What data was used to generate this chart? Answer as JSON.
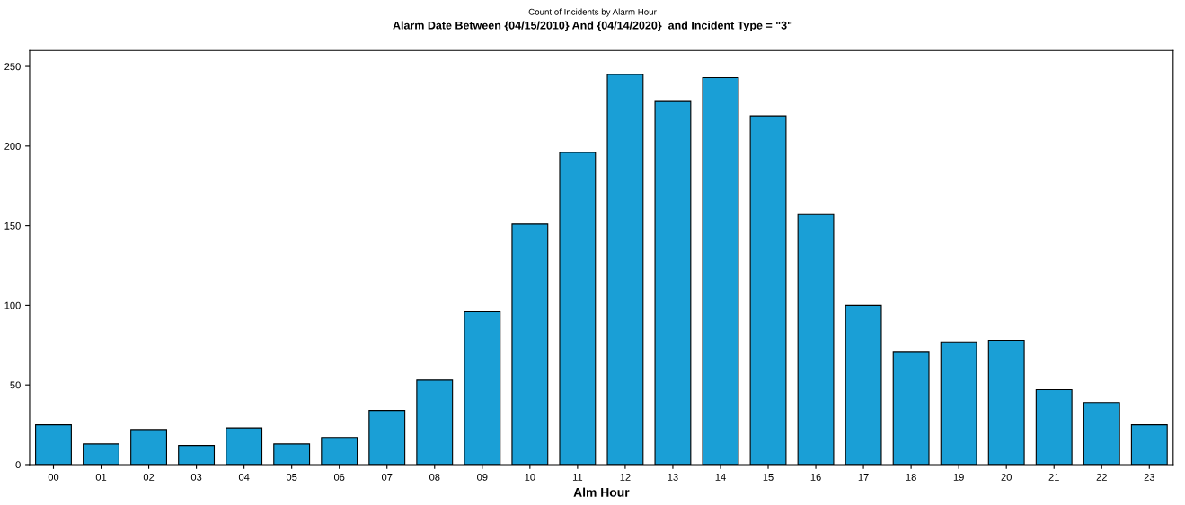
{
  "chart_data": {
    "type": "bar",
    "subtitle": "Count of Incidents by Alarm Hour",
    "title": "Alarm Date Between {04/15/2010} And {04/14/2020}  and Incident Type = \"3\"",
    "xlabel": "Alm Hour",
    "categories": [
      "00",
      "01",
      "02",
      "03",
      "04",
      "05",
      "06",
      "07",
      "08",
      "09",
      "10",
      "11",
      "12",
      "13",
      "14",
      "15",
      "16",
      "17",
      "18",
      "19",
      "20",
      "21",
      "22",
      "23"
    ],
    "values": [
      25,
      13,
      22,
      12,
      23,
      13,
      17,
      34,
      53,
      96,
      151,
      196,
      245,
      228,
      243,
      219,
      157,
      100,
      71,
      77,
      78,
      47,
      39,
      25
    ],
    "color": "#1a9fd6",
    "ylim": [
      0,
      260
    ],
    "yticks": [
      0,
      50,
      100,
      150,
      200,
      250
    ],
    "grid": false
  }
}
